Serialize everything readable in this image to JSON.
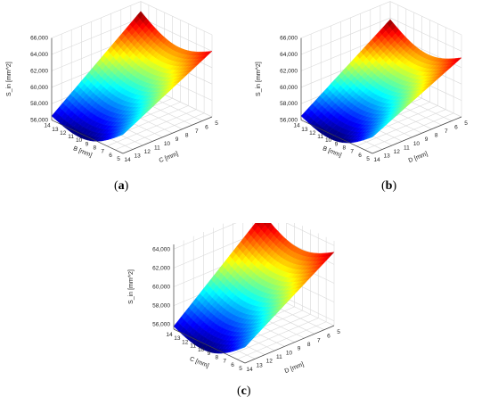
{
  "chart_data": [
    {
      "type": "surface3d",
      "panel_label": "a",
      "zlabel": "S_in [mm^2]",
      "xlabel": "B [mm]",
      "ylabel": "C [mm]",
      "x_ticks": [
        "14",
        "13",
        "12",
        "11",
        "10",
        "9",
        "8",
        "7",
        "6",
        "5"
      ],
      "y_ticks": [
        "14",
        "13",
        "12",
        "11",
        "10",
        "9",
        "8",
        "7",
        "6",
        "5"
      ],
      "z_ticks": [
        "56,000",
        "58,000",
        "60,000",
        "62,000",
        "64,000",
        "66,000"
      ],
      "xlim": [
        5,
        14
      ],
      "ylim": [
        5,
        14
      ],
      "zlim": [
        56000,
        66000
      ],
      "corner_values": {
        "x_high_y_high": 56500,
        "x_low_y_high": 58300,
        "x_high_y_low": 64800,
        "x_low_y_low": 64000
      },
      "colormap": "jet"
    },
    {
      "type": "surface3d",
      "panel_label": "b",
      "zlabel": "S_in [mm^2]",
      "xlabel": "B [mm]",
      "ylabel": "D [mm]",
      "x_ticks": [
        "14",
        "13",
        "12",
        "11",
        "10",
        "9",
        "8",
        "7",
        "6",
        "5"
      ],
      "y_ticks": [
        "14",
        "13",
        "12",
        "11",
        "10",
        "9",
        "8",
        "7",
        "6",
        "5"
      ],
      "z_ticks": [
        "56,000",
        "58,000",
        "60,000",
        "62,000",
        "64,000",
        "66,000"
      ],
      "xlim": [
        5,
        14
      ],
      "ylim": [
        5,
        14
      ],
      "zlim": [
        56000,
        66000
      ],
      "corner_values": {
        "x_high_y_high": 56500,
        "x_low_y_high": 58000,
        "x_high_y_low": 63800,
        "x_low_y_low": 63200
      },
      "colormap": "jet"
    },
    {
      "type": "surface3d",
      "panel_label": "c",
      "zlabel": "S_in [mm^2]",
      "xlabel": "C [mm]",
      "ylabel": "D [mm]",
      "x_ticks": [
        "14",
        "13",
        "12",
        "11",
        "10",
        "9",
        "8",
        "7",
        "6",
        "5"
      ],
      "y_ticks": [
        "14",
        "13",
        "12",
        "11",
        "10",
        "9",
        "8",
        "7",
        "6",
        "5"
      ],
      "z_ticks": [
        "56,000",
        "58,000",
        "60,000",
        "62,000",
        "64,000"
      ],
      "xlim": [
        5,
        14
      ],
      "ylim": [
        5,
        14
      ],
      "zlim": [
        55500,
        64500
      ],
      "corner_values": {
        "x_high_y_high": 55800,
        "x_low_y_high": 57200,
        "x_high_y_low": 63800,
        "x_low_y_low": 63300
      },
      "colormap": "jet"
    }
  ]
}
